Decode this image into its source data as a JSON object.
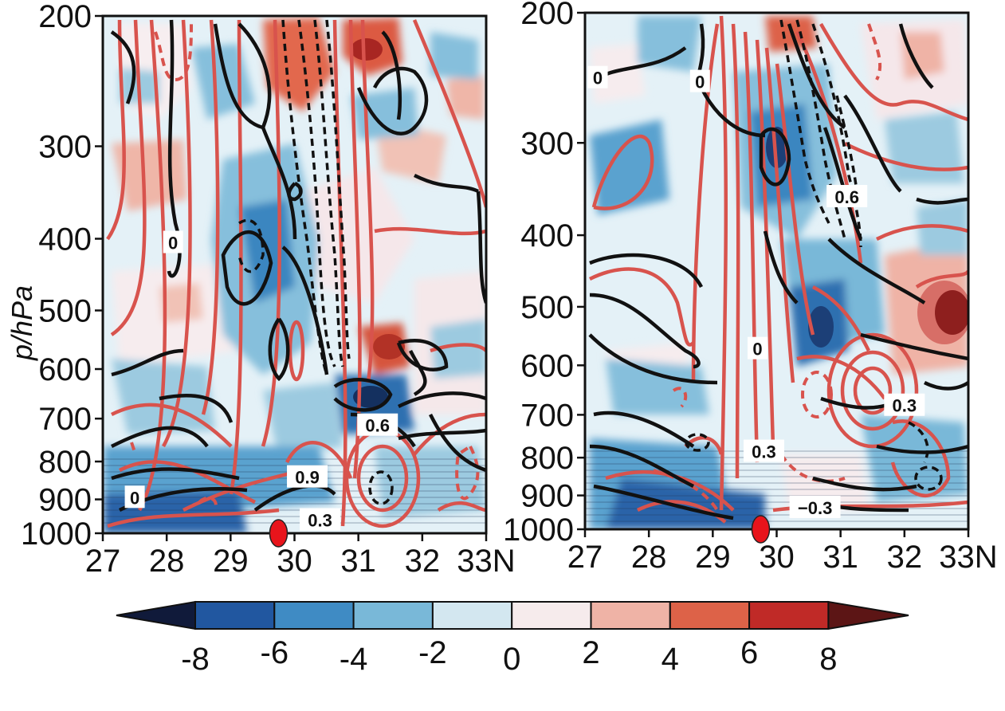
{
  "chart_data": [
    {
      "type": "heatmap",
      "title": "",
      "xlabel": "",
      "ylabel": "p/hPa",
      "xlim": [
        27,
        33
      ],
      "ylim": [
        1000,
        200
      ],
      "y_scale": "log",
      "x_ticks": [
        "27",
        "28",
        "29",
        "30",
        "31",
        "32",
        "33N"
      ],
      "x_tick_values": [
        27,
        28,
        29,
        30,
        31,
        32,
        33
      ],
      "y_ticks": [
        "200",
        "300",
        "400",
        "500",
        "600",
        "700",
        "800",
        "900",
        "1000"
      ],
      "y_tick_values": [
        200,
        300,
        400,
        500,
        600,
        700,
        800,
        900,
        1000
      ],
      "marker": {
        "lat": 29.75,
        "p": 1000,
        "color": "#e8141b"
      },
      "contour_labels": [
        {
          "text": "0",
          "lat": 28.1,
          "p": 405
        },
        {
          "text": "0",
          "lat": 27.5,
          "p": 895
        },
        {
          "text": "0.6",
          "lat": 31.3,
          "p": 715
        },
        {
          "text": "0.9",
          "lat": 30.2,
          "p": 840
        },
        {
          "text": "0.3",
          "lat": 30.4,
          "p": 960
        }
      ]
    },
    {
      "type": "heatmap",
      "title": "",
      "xlabel": "",
      "ylabel": "",
      "xlim": [
        27,
        33
      ],
      "ylim": [
        1000,
        200
      ],
      "y_scale": "log",
      "x_ticks": [
        "27",
        "28",
        "29",
        "30",
        "31",
        "32",
        "33N"
      ],
      "x_tick_values": [
        27,
        28,
        29,
        30,
        31,
        32,
        33
      ],
      "y_ticks": [
        "200",
        "300",
        "400",
        "500",
        "600",
        "700",
        "800",
        "900",
        "1000"
      ],
      "y_tick_values": [
        200,
        300,
        400,
        500,
        600,
        700,
        800,
        900,
        1000
      ],
      "marker": {
        "lat": 29.75,
        "p": 1000,
        "color": "#e8141b"
      },
      "contour_labels": [
        {
          "text": "0",
          "lat": 27.2,
          "p": 245
        },
        {
          "text": "0",
          "lat": 28.8,
          "p": 248
        },
        {
          "text": "0.6",
          "lat": 31.1,
          "p": 355
        },
        {
          "text": "0.3",
          "lat": 29.8,
          "p": 785
        },
        {
          "text": "0.3",
          "lat": 32.0,
          "p": 680
        },
        {
          "text": "0",
          "lat": 29.7,
          "p": 570
        },
        {
          "text": "−0.3",
          "lat": 30.6,
          "p": 935
        }
      ]
    }
  ],
  "colorbar": {
    "ticks": [
      "-8",
      "-6",
      "-4",
      "-2",
      "0",
      "2",
      "4",
      "6",
      "8"
    ],
    "colors": [
      "#101a3a",
      "#2157a0",
      "#3f8bc4",
      "#79b8d8",
      "#d3e7f0",
      "#f6ebec",
      "#efb3a6",
      "#dd6248",
      "#c02a27",
      "#5c1515"
    ]
  }
}
